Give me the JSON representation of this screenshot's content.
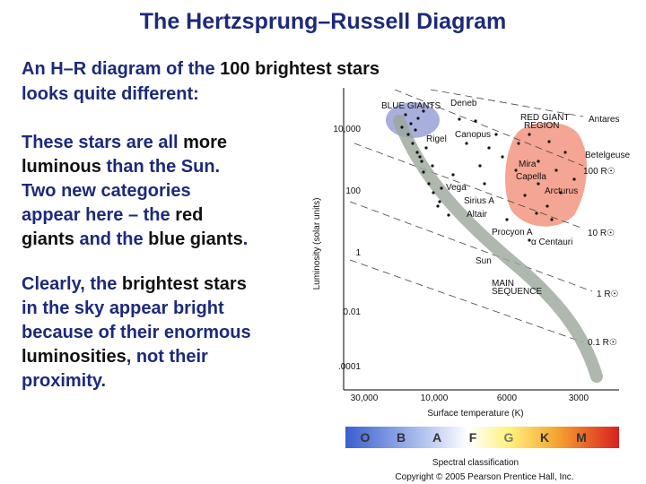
{
  "title": "The Hertzsprung–Russell Diagram",
  "intro": [
    [
      "An H–R diagram of the ",
      {
        "text": "100 brightest stars",
        "em": true
      }
    ],
    [
      "looks quite different:"
    ]
  ],
  "paragraphs": [
    [
      [
        "These stars are all ",
        {
          "text": "more",
          "em": true
        }
      ],
      [
        {
          "text": "luminous",
          "em": true
        },
        " than the Sun."
      ],
      [
        "Two new categories"
      ],
      [
        "appear here – the ",
        {
          "text": "red",
          "em": true
        }
      ],
      [
        {
          "text": "giants",
          "em": true
        },
        " and the ",
        {
          "text": "blue giants",
          "em": true
        },
        "."
      ]
    ],
    [
      [
        "Clearly, the ",
        {
          "text": "brightest stars",
          "em": true
        }
      ],
      [
        "in the sky appear bright"
      ],
      [
        "because of their enormous"
      ],
      [
        {
          "text": "luminosities",
          "em": true
        },
        ", not their"
      ],
      [
        "proximity."
      ]
    ]
  ],
  "figure": {
    "y_label": "Luminosity (solar units)",
    "y_ticks": [
      "10,000",
      "100",
      "1",
      "0.01",
      ".0001"
    ],
    "x_ticks": [
      "30,000",
      "10,000",
      "6000",
      "3000"
    ],
    "x_label": "Surface temperature (K)",
    "classes": [
      "O",
      "B",
      "A",
      "F",
      "G",
      "K",
      "M"
    ],
    "class_label": "Spectral classification",
    "copyright": "Copyright © 2005 Pearson Prentice Hall, Inc.",
    "labels": [
      "Deneb",
      "BLUE GIANTS",
      "RED GIANT",
      "REGION",
      "Antares",
      "Rigel",
      "Canopus",
      "Betelgeuse",
      "Mira",
      "100 R☉",
      "Capella",
      "Vega",
      "Arcturus",
      "Sirius A",
      "Altair",
      "Procyon A",
      "10 R☉",
      "α Centauri",
      "Sun",
      "MAIN",
      "SEQUENCE",
      "1 R☉",
      "0.1 R☉"
    ]
  }
}
